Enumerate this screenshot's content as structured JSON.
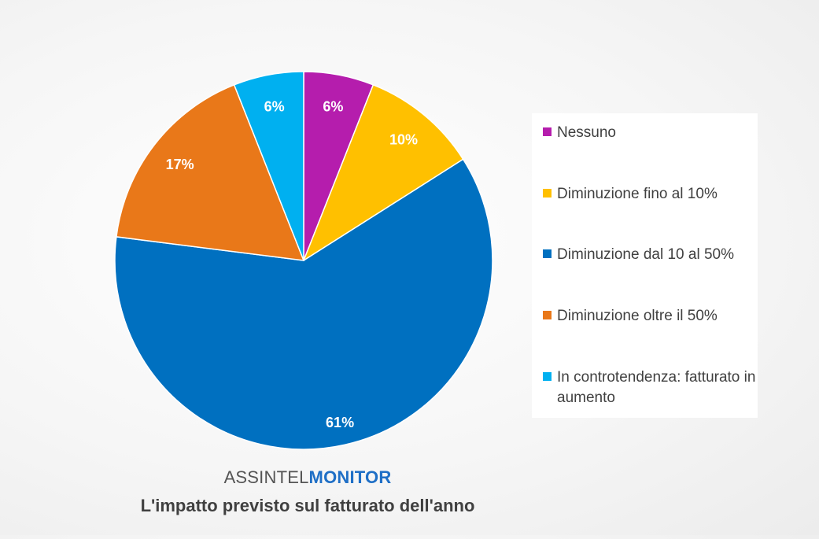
{
  "chart_data": {
    "type": "pie",
    "categories": [
      "Nessuno",
      "Diminuzione fino al 10%",
      "Diminuzione dal 10 al 50%",
      "Diminuzione oltre il 50%",
      "In controtendenza: fatturato in aumento"
    ],
    "values": [
      6,
      10,
      61,
      17,
      6
    ],
    "labels": [
      "6%",
      "10%",
      "61%",
      "17%",
      "6%"
    ],
    "colors": [
      "#b51dad",
      "#ffc000",
      "#0070c0",
      "#e97819",
      "#00b0f0"
    ],
    "legend_placement": "right",
    "title": "L'impatto previsto sul fatturato dell'anno"
  },
  "legend": {
    "items": [
      {
        "label": "Nessuno",
        "color": "#b51dad"
      },
      {
        "label": "Diminuzione fino al 10%",
        "color": "#ffc000"
      },
      {
        "label": "Diminuzione dal 10 al 50%",
        "color": "#0070c0"
      },
      {
        "label": "Diminuzione oltre il 50%",
        "color": "#e97819"
      },
      {
        "label": "In controtendenza: fatturato in aumento",
        "color": "#00b0f0"
      }
    ]
  },
  "brand": {
    "prefix": "ASSINTEL",
    "suffix": "MONITOR"
  },
  "title": "L'impatto previsto sul fatturato dell'anno"
}
